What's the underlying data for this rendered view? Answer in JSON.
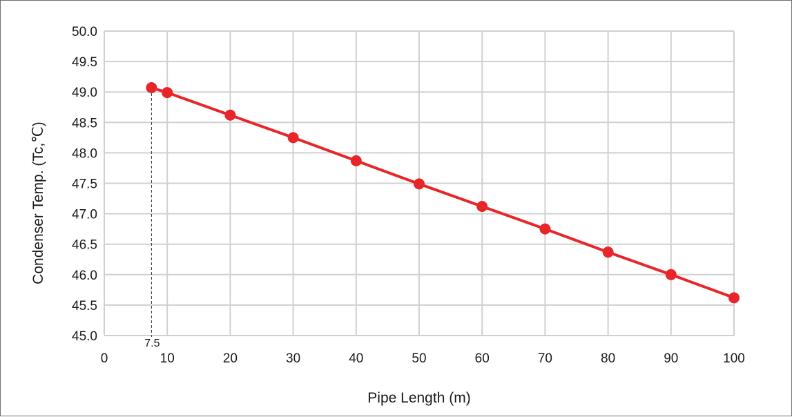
{
  "chart_data": {
    "type": "line",
    "title": "",
    "xlabel": "Pipe Length (m)",
    "ylabel": "Condenser Temp. (Tc,℃)",
    "xlim": [
      0,
      100
    ],
    "ylim": [
      45.0,
      50.0
    ],
    "x_ticks": [
      "0",
      "10",
      "20",
      "30",
      "40",
      "50",
      "60",
      "70",
      "80",
      "90",
      "100"
    ],
    "y_ticks": [
      "45.0",
      "45.5",
      "46.0",
      "46.5",
      "47.0",
      "47.5",
      "48.0",
      "48.5",
      "49.0",
      "49.5",
      "50.0"
    ],
    "grid": true,
    "legend": "none",
    "series": [
      {
        "color": "#e8262a",
        "x": [
          7.5,
          10,
          20,
          30,
          40,
          50,
          60,
          70,
          80,
          90,
          100
        ],
        "y": [
          49.07,
          48.99,
          48.62,
          48.25,
          47.87,
          47.49,
          47.12,
          46.75,
          46.37,
          46.0,
          45.62
        ]
      }
    ],
    "annotation": {
      "label": "7.5",
      "x": 7.5,
      "style": "dashed-vertical-line"
    }
  }
}
